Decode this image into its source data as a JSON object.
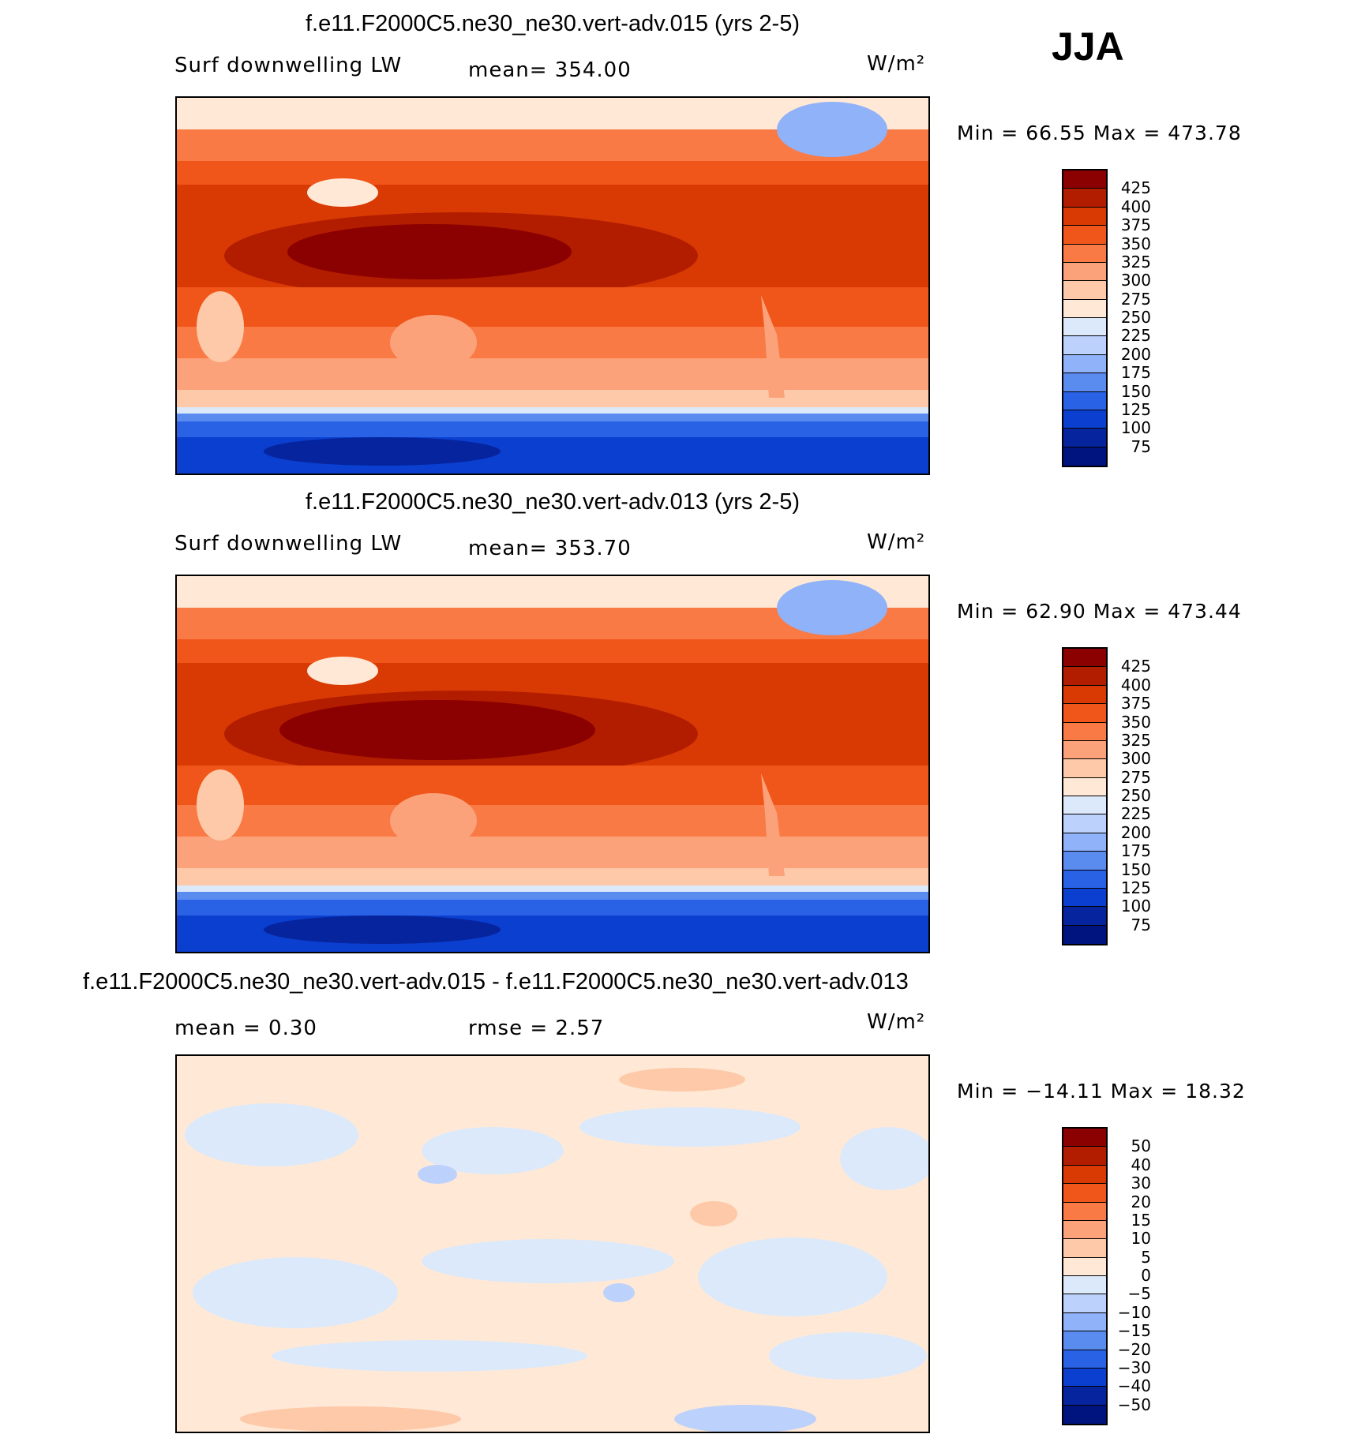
{
  "season": "JJA",
  "panels": [
    {
      "title": "f.e11.F2000C5.ne30_ne30.vert-adv.015 (yrs 2-5)",
      "left_label": "Surf downwelling LW",
      "center_label": "mean=  354.00",
      "units": "W/m²",
      "stats": "Min =   66.55 Max = 473.78",
      "colorbar": {
        "labels": [
          "425",
          "400",
          "375",
          "350",
          "325",
          "300",
          "275",
          "250",
          "225",
          "200",
          "175",
          "150",
          "125",
          "100",
          "75"
        ],
        "colors": [
          "#8b0000",
          "#b21d00",
          "#d93a04",
          "#f0561a",
          "#f97a45",
          "#fca27a",
          "#fdc9a8",
          "#ffe9d6",
          "#dce9fa",
          "#bcd1fb",
          "#90b2f8",
          "#5a8cf0",
          "#2a62e6",
          "#0b3fcf",
          "#06249e",
          "#001480"
        ]
      }
    },
    {
      "title": "f.e11.F2000C5.ne30_ne30.vert-adv.013 (yrs 2-5)",
      "left_label": "Surf downwelling LW",
      "center_label": "mean=  353.70",
      "units": "W/m²",
      "stats": "Min =   62.90 Max = 473.44",
      "colorbar": {
        "labels": [
          "425",
          "400",
          "375",
          "350",
          "325",
          "300",
          "275",
          "250",
          "225",
          "200",
          "175",
          "150",
          "125",
          "100",
          "75"
        ],
        "colors": [
          "#8b0000",
          "#b21d00",
          "#d93a04",
          "#f0561a",
          "#f97a45",
          "#fca27a",
          "#fdc9a8",
          "#ffe9d6",
          "#dce9fa",
          "#bcd1fb",
          "#90b2f8",
          "#5a8cf0",
          "#2a62e6",
          "#0b3fcf",
          "#06249e",
          "#001480"
        ]
      }
    },
    {
      "title": "f.e11.F2000C5.ne30_ne30.vert-adv.015 - f.e11.F2000C5.ne30_ne30.vert-adv.013",
      "left_label": "mean =     0.30",
      "center_label": "rmse =     2.57",
      "units": "W/m²",
      "stats": "Min = −14.11 Max =   18.32",
      "colorbar": {
        "labels": [
          "50",
          "40",
          "30",
          "20",
          "15",
          "10",
          "5",
          "0",
          "−5",
          "−10",
          "−15",
          "−20",
          "−30",
          "−40",
          "−50"
        ],
        "colors": [
          "#8b0000",
          "#b21d00",
          "#d93a04",
          "#f0561a",
          "#f97a45",
          "#fca27a",
          "#fdc9a8",
          "#ffe9d6",
          "#dce9fa",
          "#bcd1fb",
          "#90b2f8",
          "#5a8cf0",
          "#2a62e6",
          "#0b3fcf",
          "#06249e",
          "#001480"
        ]
      }
    }
  ]
}
